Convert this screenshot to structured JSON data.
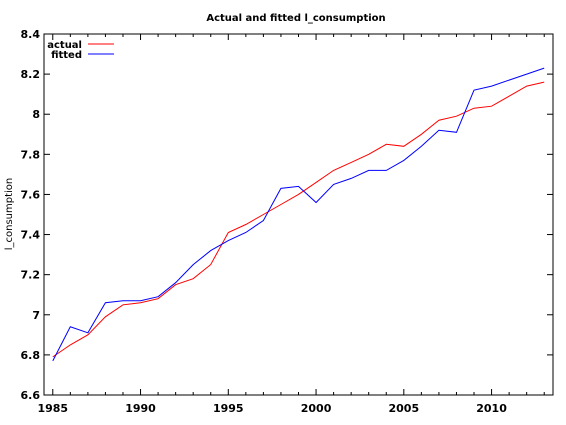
{
  "chart_data": {
    "type": "line",
    "title": "Actual and fitted l_consumption",
    "xlabel": "",
    "ylabel": "l_consumption",
    "xlim": [
      1984.5,
      2013.5
    ],
    "ylim": [
      6.6,
      8.4
    ],
    "x_ticks": [
      1985,
      1990,
      1995,
      2000,
      2005,
      2010
    ],
    "y_ticks": [
      6.6,
      6.8,
      7.0,
      7.2,
      7.4,
      7.6,
      7.8,
      8.0,
      8.2,
      8.4
    ],
    "y_tick_labels": [
      "6.6",
      "6.8",
      "7",
      "7.2",
      "7.4",
      "7.6",
      "7.8",
      "8",
      "8.2",
      "8.4"
    ],
    "legend_position": "top-left",
    "grid": false,
    "x": [
      1985,
      1986,
      1987,
      1988,
      1989,
      1990,
      1991,
      1992,
      1993,
      1994,
      1995,
      1996,
      1997,
      1998,
      1999,
      2000,
      2001,
      2002,
      2003,
      2004,
      2005,
      2006,
      2007,
      2008,
      2009,
      2010,
      2011,
      2012,
      2013
    ],
    "series": [
      {
        "name": "actual",
        "color": "#ff0000",
        "values": [
          6.79,
          6.85,
          6.9,
          6.99,
          7.05,
          7.06,
          7.08,
          7.15,
          7.18,
          7.25,
          7.41,
          7.45,
          7.5,
          7.55,
          7.6,
          7.66,
          7.72,
          7.76,
          7.8,
          7.85,
          7.84,
          7.9,
          7.97,
          7.99,
          8.03,
          8.04,
          8.09,
          8.14,
          8.16
        ]
      },
      {
        "name": "fitted",
        "color": "#0000ff",
        "values": [
          6.77,
          6.94,
          6.91,
          7.06,
          7.07,
          7.07,
          7.09,
          7.16,
          7.25,
          7.32,
          7.37,
          7.41,
          7.47,
          7.63,
          7.64,
          7.56,
          7.65,
          7.68,
          7.72,
          7.72,
          7.77,
          7.84,
          7.92,
          7.91,
          8.12,
          8.14,
          8.17,
          8.2,
          8.23
        ]
      }
    ]
  }
}
